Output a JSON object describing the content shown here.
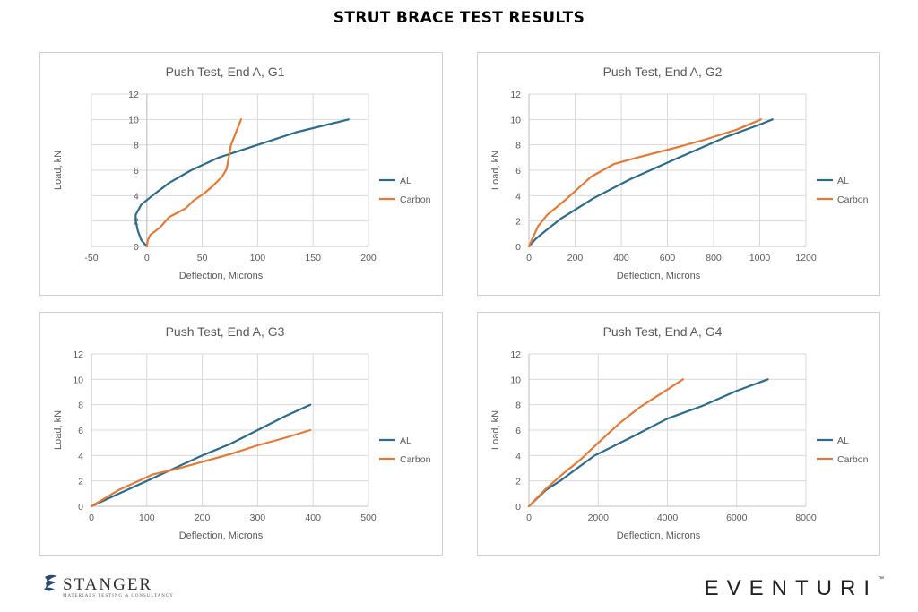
{
  "page_title": "STRUT BRACE TEST RESULTS",
  "colors": {
    "al": "#2e6b8a",
    "carbon": "#e07b39",
    "grid": "#d9d9d9",
    "axis_text": "#595959"
  },
  "footer": {
    "stanger_name": "STANGER",
    "stanger_tagline": "MATERIALS TESTING & CONSULTANCY",
    "eventuri_name": "EVENTURI",
    "eventuri_tm": "™"
  },
  "chart_data": [
    {
      "type": "line",
      "title": "Push Test, End A, G1",
      "xlabel": "Deflection, Microns",
      "ylabel": "Load, kN",
      "xlim": [
        -50,
        200
      ],
      "ylim": [
        0,
        12
      ],
      "xticks": [
        -50,
        0,
        50,
        100,
        150,
        200
      ],
      "yticks": [
        0,
        2,
        4,
        6,
        8,
        10,
        12
      ],
      "x_grid": true,
      "legend": "right",
      "series": [
        {
          "name": "AL",
          "color": "#2e6b8a",
          "points": [
            [
              0,
              0
            ],
            [
              -5,
              0.5
            ],
            [
              -8,
              1.2
            ],
            [
              -10,
              2
            ],
            [
              -10,
              2.5
            ],
            [
              -5,
              3.3
            ],
            [
              5,
              4
            ],
            [
              20,
              5
            ],
            [
              40,
              6
            ],
            [
              65,
              7
            ],
            [
              100,
              8
            ],
            [
              135,
              9
            ],
            [
              182,
              10
            ]
          ]
        },
        {
          "name": "Carbon",
          "color": "#e07b39",
          "points": [
            [
              0,
              0
            ],
            [
              1,
              0.5
            ],
            [
              3,
              0.9
            ],
            [
              12,
              1.5
            ],
            [
              20,
              2.3
            ],
            [
              35,
              3
            ],
            [
              42,
              3.6
            ],
            [
              52,
              4.2
            ],
            [
              60,
              4.8
            ],
            [
              68,
              5.5
            ],
            [
              72,
              6.1
            ],
            [
              76,
              8
            ],
            [
              85,
              10
            ]
          ]
        }
      ]
    },
    {
      "type": "line",
      "title": "Push Test, End A, G2",
      "xlabel": "Deflection, Microns",
      "ylabel": "Load, kN",
      "xlim": [
        0,
        1200
      ],
      "ylim": [
        0,
        12
      ],
      "xticks": [
        0,
        200,
        400,
        600,
        800,
        1000,
        1200
      ],
      "yticks": [
        0,
        2,
        4,
        6,
        8,
        10,
        12
      ],
      "x_grid": true,
      "legend": "right",
      "series": [
        {
          "name": "AL",
          "color": "#2e6b8a",
          "points": [
            [
              0,
              0
            ],
            [
              30,
              0.6
            ],
            [
              70,
              1.2
            ],
            [
              140,
              2.2
            ],
            [
              280,
              3.8
            ],
            [
              440,
              5.3
            ],
            [
              650,
              7
            ],
            [
              850,
              8.6
            ],
            [
              1000,
              9.6
            ],
            [
              1055,
              10
            ]
          ]
        },
        {
          "name": "Carbon",
          "color": "#e07b39",
          "points": [
            [
              0,
              0
            ],
            [
              20,
              0.8
            ],
            [
              40,
              1.6
            ],
            [
              80,
              2.5
            ],
            [
              160,
              3.7
            ],
            [
              270,
              5.5
            ],
            [
              370,
              6.5
            ],
            [
              470,
              7
            ],
            [
              640,
              7.8
            ],
            [
              760,
              8.4
            ],
            [
              900,
              9.2
            ],
            [
              1005,
              10
            ]
          ]
        }
      ]
    },
    {
      "type": "line",
      "title": "Push Test, End A, G3",
      "xlabel": "Deflection, Microns",
      "ylabel": "Load, kN",
      "xlim": [
        0,
        500
      ],
      "ylim": [
        0,
        12
      ],
      "xticks": [
        0,
        100,
        200,
        300,
        400,
        500
      ],
      "yticks": [
        0,
        2,
        4,
        6,
        8,
        10,
        12
      ],
      "x_grid": true,
      "legend": "right",
      "series": [
        {
          "name": "AL",
          "color": "#2e6b8a",
          "points": [
            [
              0,
              0
            ],
            [
              50,
              1
            ],
            [
              100,
              2
            ],
            [
              150,
              3
            ],
            [
              200,
              4
            ],
            [
              250,
              4.9
            ],
            [
              300,
              6
            ],
            [
              350,
              7.1
            ],
            [
              395,
              8
            ]
          ]
        },
        {
          "name": "Carbon",
          "color": "#e07b39",
          "points": [
            [
              0,
              0
            ],
            [
              50,
              1.3
            ],
            [
              110,
              2.5
            ],
            [
              150,
              2.9
            ],
            [
              200,
              3.5
            ],
            [
              250,
              4.1
            ],
            [
              300,
              4.8
            ],
            [
              350,
              5.4
            ],
            [
              395,
              6
            ]
          ]
        }
      ]
    },
    {
      "type": "line",
      "title": "Push Test, End A, G4",
      "xlabel": "Deflection, Microns",
      "ylabel": "Load, kN",
      "xlim": [
        0,
        8000
      ],
      "ylim": [
        0,
        12
      ],
      "xticks": [
        0,
        2000,
        4000,
        6000,
        8000
      ],
      "yticks": [
        0,
        2,
        4,
        6,
        8,
        10,
        12
      ],
      "x_grid": true,
      "legend": "right",
      "series": [
        {
          "name": "AL",
          "color": "#2e6b8a",
          "points": [
            [
              0,
              0
            ],
            [
              500,
              1.3
            ],
            [
              900,
              2
            ],
            [
              1300,
              2.8
            ],
            [
              1900,
              4
            ],
            [
              3000,
              5.5
            ],
            [
              4000,
              6.9
            ],
            [
              5000,
              7.9
            ],
            [
              6000,
              9.1
            ],
            [
              6900,
              10
            ]
          ]
        },
        {
          "name": "Carbon",
          "color": "#e07b39",
          "points": [
            [
              0,
              0
            ],
            [
              500,
              1.4
            ],
            [
              1000,
              2.6
            ],
            [
              1500,
              3.7
            ],
            [
              2000,
              5
            ],
            [
              2600,
              6.5
            ],
            [
              3200,
              7.8
            ],
            [
              4000,
              9.2
            ],
            [
              4450,
              10
            ]
          ]
        }
      ]
    }
  ]
}
